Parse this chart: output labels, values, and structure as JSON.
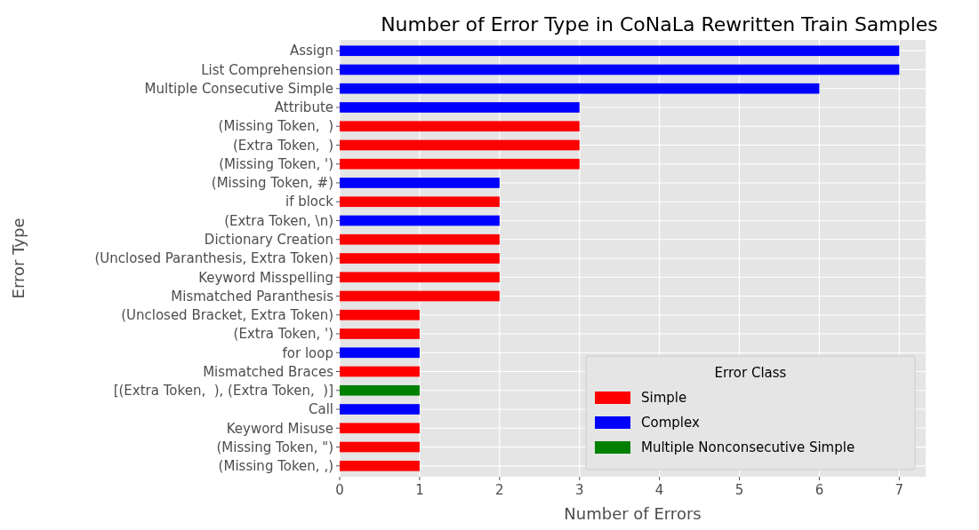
{
  "chart_data": {
    "type": "bar",
    "orientation": "horizontal",
    "title": "Number of Error Type in CoNaLa Rewritten Train Samples",
    "xlabel": "Number of Errors",
    "ylabel": "Error Type",
    "legend_title": "Error Class",
    "legend": "bottom right",
    "grid": true,
    "xlim": [
      0,
      7.33
    ],
    "xticks": [
      0,
      1,
      2,
      3,
      4,
      5,
      6,
      7
    ],
    "categories": [
      "Assign",
      "List Comprehension",
      "Multiple Consecutive Simple",
      "Attribute",
      "(Missing Token,  )",
      "(Extra Token,  )",
      "(Missing Token, ')",
      "(Missing Token, #)",
      "if block",
      "(Extra Token, \\n)",
      "Dictionary Creation",
      "(Unclosed Paranthesis, Extra Token)",
      "Keyword Misspelling",
      "Mismatched Paranthesis",
      "(Unclosed Bracket, Extra Token)",
      "(Extra Token, ')",
      "for loop",
      "Mismatched Braces",
      "[(Extra Token,  ), (Extra Token,  )]",
      "Call",
      "Keyword Misuse",
      "(Missing Token, \")",
      "(Missing Token, ,)"
    ],
    "series": [
      {
        "name": "Simple",
        "color": "#ff0000",
        "values": [
          null,
          null,
          null,
          null,
          3,
          3,
          3,
          null,
          2,
          null,
          2,
          2,
          2,
          2,
          1,
          1,
          null,
          1,
          null,
          null,
          1,
          1,
          1
        ]
      },
      {
        "name": "Complex",
        "color": "#0000ff",
        "values": [
          7,
          7,
          6,
          3,
          null,
          null,
          null,
          2,
          null,
          2,
          null,
          null,
          null,
          null,
          null,
          null,
          1,
          null,
          null,
          1,
          null,
          null,
          null
        ]
      },
      {
        "name": "Multiple Nonconsecutive Simple",
        "color": "#008000",
        "values": [
          null,
          null,
          null,
          null,
          null,
          null,
          null,
          null,
          null,
          null,
          null,
          null,
          null,
          null,
          null,
          null,
          null,
          null,
          1,
          null,
          null,
          null,
          null
        ]
      }
    ]
  }
}
